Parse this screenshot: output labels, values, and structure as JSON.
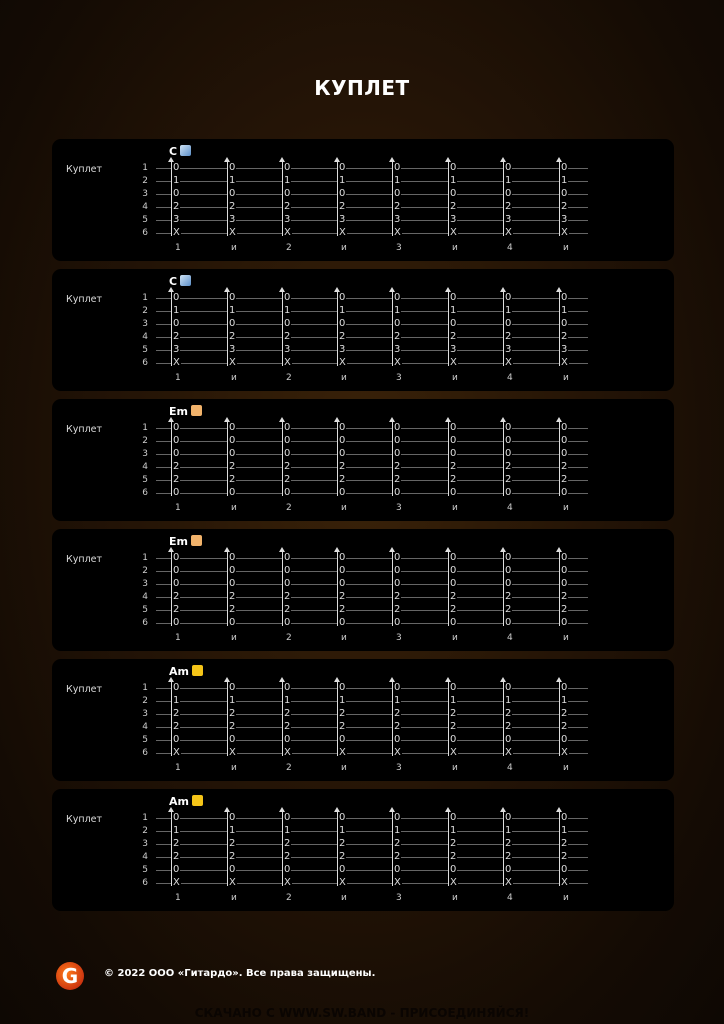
{
  "title": "КУПЛЕТ",
  "beats": [
    "1",
    "и",
    "2",
    "и",
    "3",
    "и",
    "4",
    "и"
  ],
  "string_numbers": [
    "1",
    "2",
    "3",
    "4",
    "5",
    "6"
  ],
  "blocks": [
    {
      "section": "Куплет",
      "chord": "C",
      "emoji": "chart-icon",
      "frets": [
        "0",
        "1",
        "0",
        "2",
        "3",
        "X"
      ]
    },
    {
      "section": "Куплет",
      "chord": "C",
      "emoji": "chart-icon",
      "frets": [
        "0",
        "1",
        "0",
        "2",
        "3",
        "X"
      ]
    },
    {
      "section": "Куплет",
      "chord": "Em",
      "emoji": "rock-hand-icon",
      "frets": [
        "0",
        "0",
        "0",
        "2",
        "2",
        "0"
      ]
    },
    {
      "section": "Куплет",
      "chord": "Em",
      "emoji": "rock-hand-icon",
      "frets": [
        "0",
        "0",
        "0",
        "2",
        "2",
        "0"
      ]
    },
    {
      "section": "Куплет",
      "chord": "Am",
      "emoji": "star-icon",
      "frets": [
        "0",
        "1",
        "2",
        "2",
        "0",
        "X"
      ]
    },
    {
      "section": "Куплет",
      "chord": "Am",
      "emoji": "star-icon",
      "frets": [
        "0",
        "1",
        "2",
        "2",
        "0",
        "X"
      ]
    }
  ],
  "footer": {
    "logo": "G",
    "copyright": "© 2022 ООО «Гитардо». Все права защищены."
  },
  "watermark": "СКАЧАНО С WWW.SW.BAND - ПРИСОЕДИНЯЙСЯ!"
}
